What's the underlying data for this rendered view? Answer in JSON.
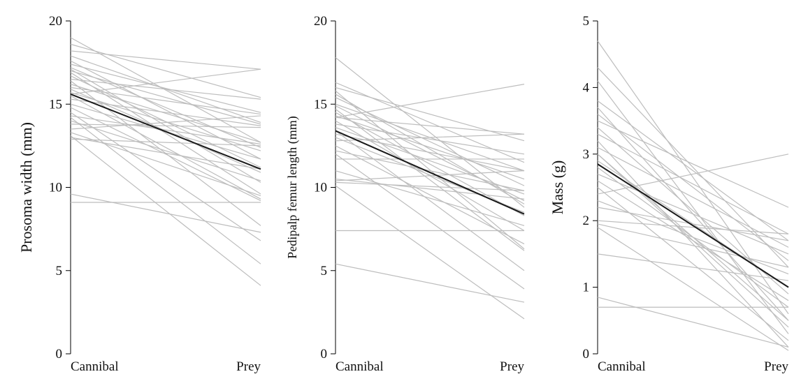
{
  "chart_data": [
    {
      "type": "line",
      "ylabel": "Prosoma width (mm)",
      "categories": [
        "Cannibal",
        "Prey"
      ],
      "ylim": [
        0,
        20
      ],
      "yticks": [
        0,
        5,
        10,
        15,
        20
      ],
      "individual_color": "#bdbdbd",
      "mean_color": "#1a1a1a",
      "individuals": [
        [
          19.0,
          12.7
        ],
        [
          18.6,
          15.4
        ],
        [
          18.2,
          17.1
        ],
        [
          17.9,
          13.9
        ],
        [
          17.6,
          11.7
        ],
        [
          17.4,
          14.5
        ],
        [
          17.2,
          12.4
        ],
        [
          17.1,
          10.3
        ],
        [
          17.0,
          13.8
        ],
        [
          16.9,
          9.6
        ],
        [
          16.7,
          11.2
        ],
        [
          16.5,
          15.3
        ],
        [
          16.4,
          7.7
        ],
        [
          16.2,
          12.7
        ],
        [
          16.0,
          14.4
        ],
        [
          15.9,
          10.9
        ],
        [
          15.7,
          12.2
        ],
        [
          15.5,
          9.3
        ],
        [
          15.3,
          13.7
        ],
        [
          15.0,
          11.7
        ],
        [
          14.8,
          9.2
        ],
        [
          14.5,
          6.8
        ],
        [
          14.3,
          12.6
        ],
        [
          14.0,
          10.4
        ],
        [
          13.8,
          13.6
        ],
        [
          13.5,
          14.3
        ],
        [
          13.3,
          9.5
        ],
        [
          13.1,
          4.1
        ],
        [
          12.9,
          12.5
        ],
        [
          13.0,
          11.1
        ],
        [
          9.1,
          9.1
        ],
        [
          9.6,
          7.3
        ],
        [
          14.2,
          5.4
        ],
        [
          15.6,
          17.1
        ]
      ],
      "mean": [
        15.6,
        11.1
      ]
    },
    {
      "type": "line",
      "ylabel": "Pedipalp femur length (mm)",
      "categories": [
        "Cannibal",
        "Prey"
      ],
      "ylim": [
        0,
        20
      ],
      "yticks": [
        0,
        5,
        10,
        15,
        20
      ],
      "individual_color": "#bdbdbd",
      "mean_color": "#1a1a1a",
      "individuals": [
        [
          17.8,
          8.8
        ],
        [
          16.3,
          11.5
        ],
        [
          16.0,
          12.8
        ],
        [
          15.6,
          9.0
        ],
        [
          15.4,
          10.1
        ],
        [
          15.0,
          11.0
        ],
        [
          14.9,
          9.2
        ],
        [
          14.7,
          6.2
        ],
        [
          14.5,
          8.3
        ],
        [
          14.3,
          10.5
        ],
        [
          14.2,
          13.2
        ],
        [
          14.0,
          7.4
        ],
        [
          13.8,
          12.0
        ],
        [
          13.6,
          9.6
        ],
        [
          13.4,
          5.0
        ],
        [
          13.2,
          11.0
        ],
        [
          13.0,
          8.5
        ],
        [
          12.8,
          13.2
        ],
        [
          12.5,
          6.6
        ],
        [
          12.2,
          9.8
        ],
        [
          12.0,
          3.9
        ],
        [
          11.7,
          11.7
        ],
        [
          11.0,
          7.7
        ],
        [
          10.5,
          9.3
        ],
        [
          10.4,
          11.0
        ],
        [
          10.3,
          9.8
        ],
        [
          10.1,
          2.1
        ],
        [
          7.4,
          7.4
        ],
        [
          5.4,
          3.1
        ],
        [
          14.2,
          16.2
        ],
        [
          15.8,
          6.3
        ]
      ],
      "mean": [
        13.4,
        8.4
      ]
    },
    {
      "type": "line",
      "ylabel": "Mass (g)",
      "categories": [
        "Cannibal",
        "Prey"
      ],
      "ylim": [
        0,
        5
      ],
      "yticks": [
        0,
        1,
        2,
        3,
        4,
        5
      ],
      "individual_color": "#bdbdbd",
      "mean_color": "#1a1a1a",
      "individuals": [
        [
          4.7,
          0.6
        ],
        [
          4.3,
          1.3
        ],
        [
          4.1,
          0.3
        ],
        [
          3.8,
          1.7
        ],
        [
          3.7,
          0.5
        ],
        [
          3.5,
          2.2
        ],
        [
          3.4,
          0.9
        ],
        [
          3.3,
          1.8
        ],
        [
          3.2,
          0.1
        ],
        [
          3.1,
          1.6
        ],
        [
          3.0,
          0.4
        ],
        [
          2.9,
          1.0
        ],
        [
          2.8,
          0.7
        ],
        [
          2.7,
          1.5
        ],
        [
          2.6,
          0.8
        ],
        [
          2.5,
          0.2
        ],
        [
          2.4,
          3.0
        ],
        [
          2.3,
          1.2
        ],
        [
          2.2,
          1.7
        ],
        [
          2.0,
          1.8
        ],
        [
          1.95,
          1.3
        ],
        [
          1.9,
          0.05
        ],
        [
          1.5,
          1.1
        ],
        [
          0.85,
          0.1
        ],
        [
          0.7,
          0.7
        ],
        [
          3.6,
          1.4
        ],
        [
          3.0,
          0.5
        ]
      ],
      "mean": [
        2.85,
        1.0
      ]
    }
  ]
}
